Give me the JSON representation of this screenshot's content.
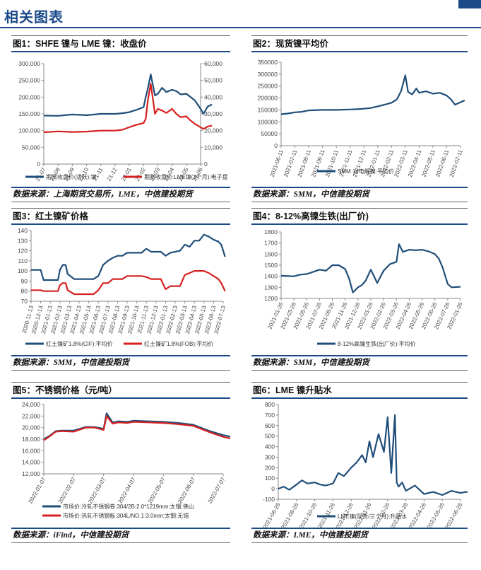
{
  "header": {
    "title": "相关图表"
  },
  "charts": [
    {
      "title": "图1：SHFE 镍与 LME 镍：收盘价",
      "source": "数据来源：上海期货交易所，LME，中信建投期货",
      "chart_data": {
        "type": "line",
        "categories": [
          "21-07",
          "21-08",
          "21-09",
          "21-10",
          "21-11",
          "21-12",
          "22-01",
          "22-02",
          "22-03",
          "22-04",
          "22-05",
          "22-06"
        ],
        "y_left": {
          "ticks": [
            "0",
            "50,000",
            "100,000",
            "150,000",
            "200,000",
            "250,000",
            "300,000"
          ],
          "ylim": [
            0,
            300000
          ]
        },
        "y_right": {
          "ticks": [
            "0",
            "10,000",
            "20,000",
            "30,000",
            "40,000",
            "50,000",
            "60,000"
          ],
          "ylim": [
            0,
            60000
          ]
        },
        "series": [
          {
            "name": "期货收盘价(活跃):镍",
            "color": "#1f4e79",
            "axis": "left",
            "x": [
              0,
              1,
              2,
              3,
              4,
              5,
              5.5,
              6,
              6.5,
              7,
              7.15,
              7.3,
              7.5,
              7.8,
              8,
              8.3,
              8.6,
              9,
              9.3,
              9.6,
              10,
              10.3,
              10.6,
              11,
              11.2,
              11.5,
              11.8
            ],
            "y": [
              145000,
              144000,
              148000,
              146000,
              150000,
              150000,
              152000,
              155000,
              162000,
              170000,
              200000,
              225000,
              268000,
              205000,
              210000,
              228000,
              215000,
              222000,
              218000,
              208000,
              210000,
              200000,
              190000,
              165000,
              150000,
              172000,
              178000
            ]
          },
          {
            "name": "期货收盘价:LME镍(3个月):电子盘",
            "color": "#d62020",
            "axis": "right",
            "x": [
              0,
              1,
              2,
              3,
              4,
              5,
              5.5,
              6,
              6.5,
              7,
              7.15,
              7.3,
              7.5,
              7.8,
              8,
              8.3,
              8.6,
              9,
              9.3,
              9.6,
              10,
              10.3,
              10.6,
              11,
              11.2,
              11.5,
              11.8
            ],
            "y": [
              19000,
              19500,
              19200,
              19400,
              20000,
              20000,
              20500,
              22000,
              23500,
              24500,
              27000,
              38000,
              48000,
              30000,
              33000,
              32000,
              30500,
              33000,
              30000,
              28000,
              28500,
              26000,
              24000,
              22000,
              21000,
              22500,
              23000
            ]
          }
        ]
      }
    },
    {
      "title": "图2：现货镍平均价",
      "source": "数据来源：SMM，中信建投期货",
      "chart_data": {
        "type": "line",
        "categories": [
          "2021-06-11",
          "2021-07-11",
          "2021-08-11",
          "2021-09-11",
          "2021-10-11",
          "2021-11-11",
          "2021-12-11",
          "2022-01-11",
          "2022-02-11",
          "2022-03-11",
          "2022-04-11",
          "2022-05-11",
          "2022-06-11",
          "2022-07-11"
        ],
        "ylim": [
          0,
          350000
        ],
        "yticks": [
          "0",
          "50000",
          "100000",
          "150000",
          "200000",
          "250000",
          "300000",
          "350000"
        ],
        "series": [
          {
            "name": "SMM 1#电解镍:平均价",
            "color": "#1f4e79",
            "x": [
              0,
              0.5,
              1,
              1.5,
              2,
              3,
              4,
              5,
              5.5,
              6,
              6.5,
              7,
              7.5,
              8,
              8.4,
              8.7,
              9,
              9.2,
              9.5,
              9.8,
              10,
              10.5,
              11,
              11.5,
              12,
              12.3,
              12.6,
              13,
              13.3
            ],
            "y": [
              132000,
              135000,
              140000,
              142000,
              148000,
              150000,
              150000,
              152000,
              153000,
              155000,
              158000,
              165000,
              172000,
              180000,
              195000,
              230000,
              295000,
              225000,
              215000,
              240000,
              222000,
              228000,
              218000,
              222000,
              210000,
              195000,
              172000,
              182000,
              190000
            ]
          }
        ]
      }
    },
    {
      "title": "图3：红土镍矿价格",
      "source": "数据来源：SMM，中信建投期货",
      "chart_data": {
        "type": "line",
        "categories": [
          "2020-11-13",
          "2020-12-13",
          "2021-01-13",
          "2021-02-13",
          "2021-03-13",
          "2021-04-13",
          "2021-05-13",
          "2021-06-13",
          "2021-07-13",
          "2021-08-13",
          "2021-09-13",
          "2021-10-13",
          "2021-11-13",
          "2021-12-13",
          "2022-01-13",
          "2022-02-13",
          "2022-03-13",
          "2022-04-13",
          "2022-05-13",
          "2022-06-13",
          "2022-07-13"
        ],
        "ylim": [
          70,
          140
        ],
        "yticks": [
          "70",
          "80",
          "90",
          "100",
          "110",
          "120",
          "130",
          "140"
        ],
        "series": [
          {
            "name": "红土镍矿1.8%(CIF):平均价",
            "color": "#1f4e79",
            "x": [
              0,
              1,
              1.3,
              2.8,
              3,
              3.3,
              3.6,
              3.8,
              4.5,
              6.5,
              7,
              7.5,
              8,
              8.5,
              9,
              9.5,
              10,
              11.5,
              12,
              12.5,
              13.5,
              14,
              14.5,
              15.5,
              16,
              16.5,
              17,
              17.5,
              18,
              18.5,
              19,
              19.5,
              19.8,
              20,
              20.2
            ],
            "y": [
              101,
              101,
              91,
              91,
              101,
              106,
              106,
              97,
              92,
              92,
              95,
              106,
              110,
              113,
              115,
              115,
              118,
              118,
              122,
              119,
              119,
              115,
              118,
              120,
              126,
              124,
              130,
              130,
              136,
              134,
              131,
              129,
              126,
              120,
              114
            ]
          },
          {
            "name": "红土镍矿1.8%(FOB):平均价",
            "color": "#d62020",
            "x": [
              0,
              1,
              1.3,
              2.8,
              3,
              3.3,
              3.6,
              3.8,
              4.5,
              6.5,
              7,
              7.5,
              8,
              8.5,
              9,
              9.5,
              10,
              11.5,
              12,
              12.5,
              13.5,
              14,
              14.5,
              15.5,
              16,
              16.5,
              17,
              17.5,
              18,
              18.5,
              19,
              19.5,
              19.8,
              20,
              20.2
            ],
            "y": [
              81,
              81,
              80,
              80,
              86,
              88,
              88,
              81,
              77,
              77,
              81,
              88,
              88,
              92,
              92,
              92,
              95,
              95,
              94,
              92,
              92,
              82,
              85,
              85,
              96,
              98,
              100,
              100,
              100,
              98,
              95,
              92,
              88,
              84,
              80
            ]
          }
        ]
      }
    },
    {
      "title": "图4：8-12%高镍生铁(出厂价)",
      "source": "数据来源：SMM，中信建投期货",
      "chart_data": {
        "type": "line",
        "categories": [
          "2021-01-26",
          "2021-03-26",
          "2021-05-26",
          "2021-07-26",
          "2021-09-26",
          "2021-11-26",
          "2021-12-26",
          "2022-01-26",
          "2022-02-26",
          "2022-03-26",
          "2022-04-26",
          "2022-05-26",
          "2022-06-26",
          "2022-07-26",
          "2022-01-26"
        ],
        "ylim": [
          1200,
          1800
        ],
        "yticks": [
          "1200",
          "1300",
          "1400",
          "1500",
          "1600",
          "1700",
          "1800"
        ],
        "series": [
          {
            "name": "8-12%高镍生铁(出厂价):平均价",
            "color": "#1f4e79",
            "x": [
              0,
              0.5,
              1,
              1.5,
              2,
              2.5,
              3,
              3.5,
              4,
              4.5,
              5,
              5.3,
              5.6,
              6,
              6.3,
              6.6,
              7,
              7.5,
              8,
              8.5,
              9,
              9.2,
              9.5,
              10,
              10.5,
              11,
              11.5,
              12,
              12.3,
              12.6,
              13,
              13.3,
              14
            ],
            "y": [
              1405,
              1402,
              1400,
              1415,
              1420,
              1440,
              1460,
              1450,
              1500,
              1500,
              1465,
              1380,
              1255,
              1300,
              1320,
              1360,
              1460,
              1340,
              1450,
              1510,
              1530,
              1690,
              1620,
              1640,
              1635,
              1640,
              1625,
              1600,
              1560,
              1480,
              1330,
              1300,
              1305
            ]
          }
        ]
      }
    },
    {
      "title": "图5：不锈钢价格（元/吨）",
      "source": "数据来源：iFind，中信建投期货",
      "chart_data": {
        "type": "line",
        "categories": [
          "2022-01-07",
          "2022-02-07",
          "2022-03-07",
          "2022-04-07",
          "2022-05-07",
          "2022-06-07",
          "2022-07-07"
        ],
        "ylim": [
          12000,
          24000
        ],
        "yticks": [
          "12,000",
          "14,000",
          "16,000",
          "18,000",
          "20,000",
          "22,000",
          "24,000"
        ],
        "series": [
          {
            "name": "市场价:冷轧不锈钢卷:304/2B:2.0*1219mm:太钢:佛山",
            "color": "#1f4e79",
            "x": [
              0,
              0.2,
              0.4,
              0.6,
              1,
              1.4,
              1.7,
              2,
              2.1,
              2.3,
              2.5,
              2.8,
              3,
              3.5,
              4,
              4.5,
              5,
              5.5,
              6,
              6.5,
              7
            ],
            "y": [
              18000,
              18600,
              19400,
              19500,
              19500,
              20100,
              20100,
              19800,
              22500,
              20900,
              21100,
              21000,
              21200,
              21100,
              21000,
              20800,
              20500,
              19500,
              18700,
              18200,
              18100
            ]
          },
          {
            "name": "市场价:热轧不锈钢板:304L/NO.1:3.0mm:太钢:无锡",
            "color": "#d62020",
            "x": [
              0,
              0.2,
              0.4,
              0.6,
              1,
              1.4,
              1.7,
              2,
              2.1,
              2.3,
              2.5,
              2.8,
              3,
              3.5,
              4,
              4.5,
              5,
              5.5,
              6,
              6.5,
              7
            ],
            "y": [
              17800,
              18500,
              19300,
              19400,
              19300,
              20000,
              20000,
              19600,
              22000,
              20700,
              20900,
              20800,
              21000,
              20900,
              20800,
              20600,
              20300,
              19300,
              18400,
              17800,
              17500
            ]
          }
        ]
      }
    },
    {
      "title": "图6：LME 镍升贴水",
      "source": "数据来源：LME，中信建投期货",
      "chart_data": {
        "type": "line",
        "categories": [
          "2021-06-26",
          "2021-08-26",
          "2021-10-26",
          "2021-11-26",
          "2021-12-26",
          "2022-01-26",
          "2022-02-26",
          "2022-03-26",
          "2022-04-26",
          "2022-05-26",
          "2022-06-26"
        ],
        "ylim": [
          -100,
          800
        ],
        "yticks": [
          "-100",
          "0",
          "100",
          "200",
          "300",
          "400",
          "500",
          "600",
          "700",
          "800"
        ],
        "series": [
          {
            "name": "LME镍(现货/三个月):升贴水",
            "color": "#1f4e79",
            "x": [
              0,
              0.3,
              0.6,
              1,
              1.3,
              1.6,
              2,
              2.3,
              2.6,
              3,
              3.3,
              3.6,
              4,
              4.3,
              4.6,
              4.8,
              5,
              5.2,
              5.5,
              5.8,
              6,
              6.2,
              6.4,
              6.5,
              6.6,
              6.8,
              7,
              7.5,
              8,
              8.5,
              9,
              9.5,
              10,
              10.3,
              10.6
            ],
            "y": [
              0,
              20,
              -10,
              40,
              80,
              50,
              60,
              40,
              30,
              50,
              150,
              120,
              200,
              250,
              320,
              250,
              450,
              300,
              520,
              350,
              680,
              150,
              700,
              60,
              20,
              60,
              -20,
              30,
              -50,
              -30,
              -60,
              -20,
              -40,
              -30,
              -35
            ]
          }
        ]
      }
    }
  ]
}
